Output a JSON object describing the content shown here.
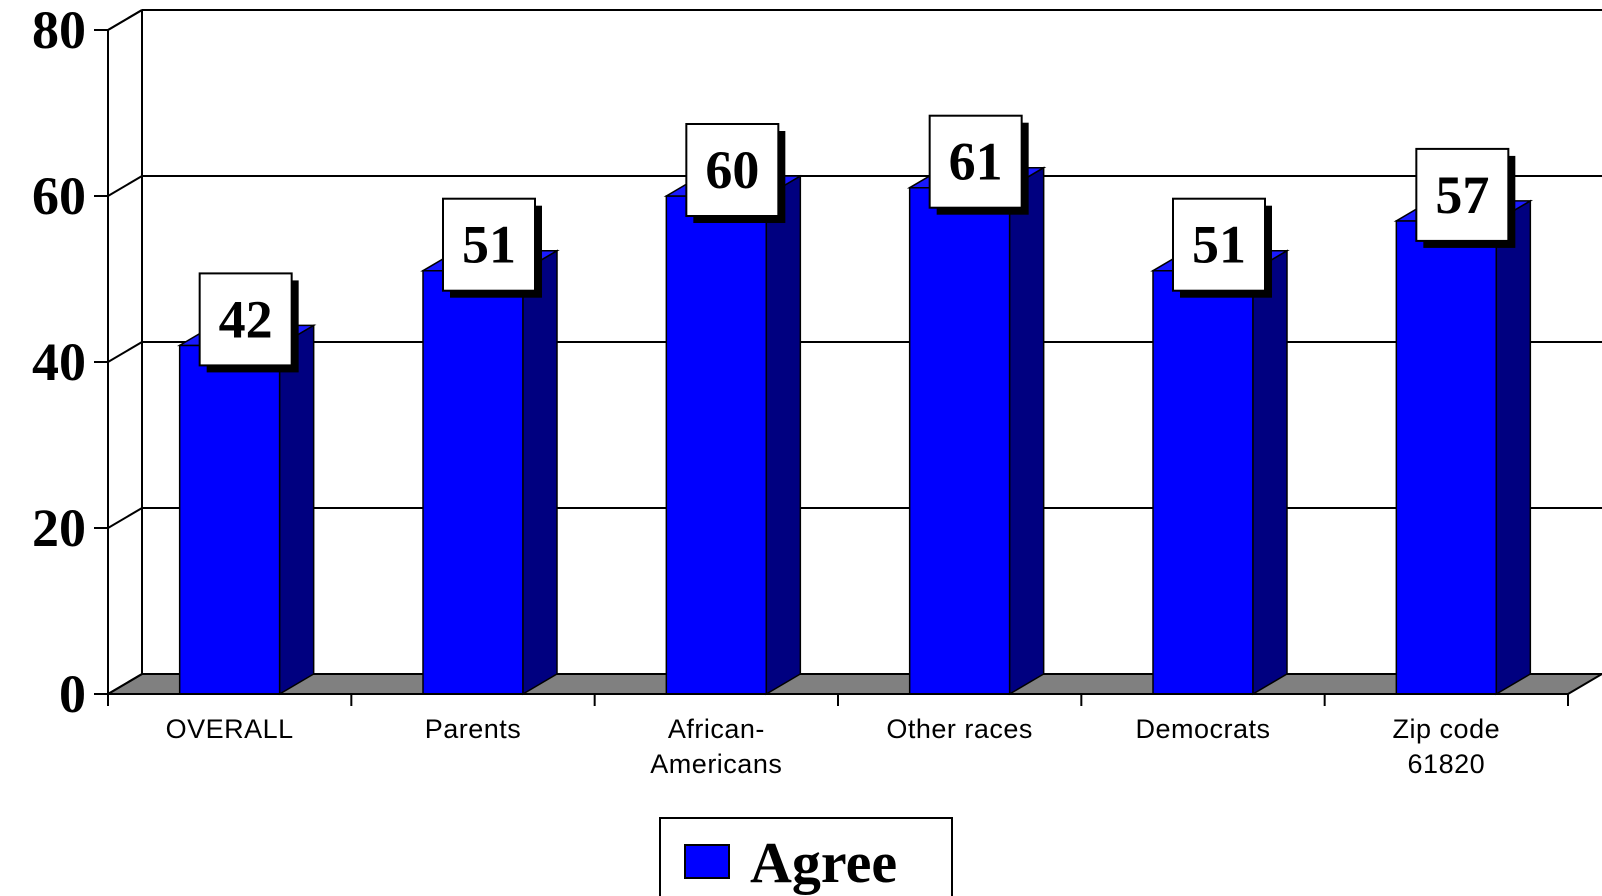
{
  "chart_data": {
    "type": "bar",
    "categories": [
      [
        "OVERALL"
      ],
      [
        "Parents"
      ],
      [
        "African-",
        "Americans"
      ],
      [
        "Other races"
      ],
      [
        "Democrats"
      ],
      [
        "Zip code",
        "61820"
      ]
    ],
    "series": [
      {
        "name": "Agree",
        "values": [
          42,
          51,
          60,
          61,
          51,
          57
        ],
        "color": "#0000FF"
      }
    ],
    "ylim": [
      0,
      80
    ],
    "yticks": [
      0,
      20,
      40,
      60,
      80
    ],
    "grid": true,
    "legend": "bottom-center",
    "colors": {
      "bar_front": "#0000FF",
      "bar_side": "#000080",
      "floor": "#808080"
    },
    "icons": [
      "legend-swatch"
    ]
  }
}
